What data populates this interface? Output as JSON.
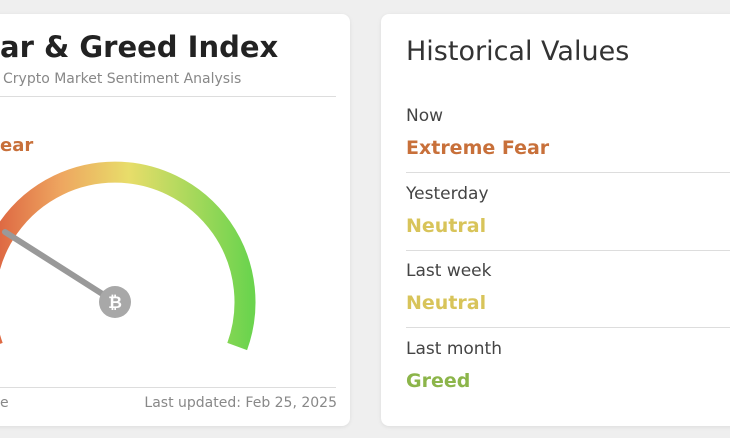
{
  "left_card": {
    "title": "ar & Greed Index",
    "subtitle": "Crypto Market Sentiment Analysis",
    "status": "ear",
    "footer_left": "e",
    "last_updated": "Last updated: Feb 25, 2025"
  },
  "right_card": {
    "title": "Historical Values",
    "rows": [
      {
        "label": "Now",
        "value": "Extreme Fear"
      },
      {
        "label": "Yesterday",
        "value": "Neutral"
      },
      {
        "label": "Last week",
        "value": "Neutral"
      },
      {
        "label": "Last month",
        "value": "Greed"
      }
    ]
  }
}
